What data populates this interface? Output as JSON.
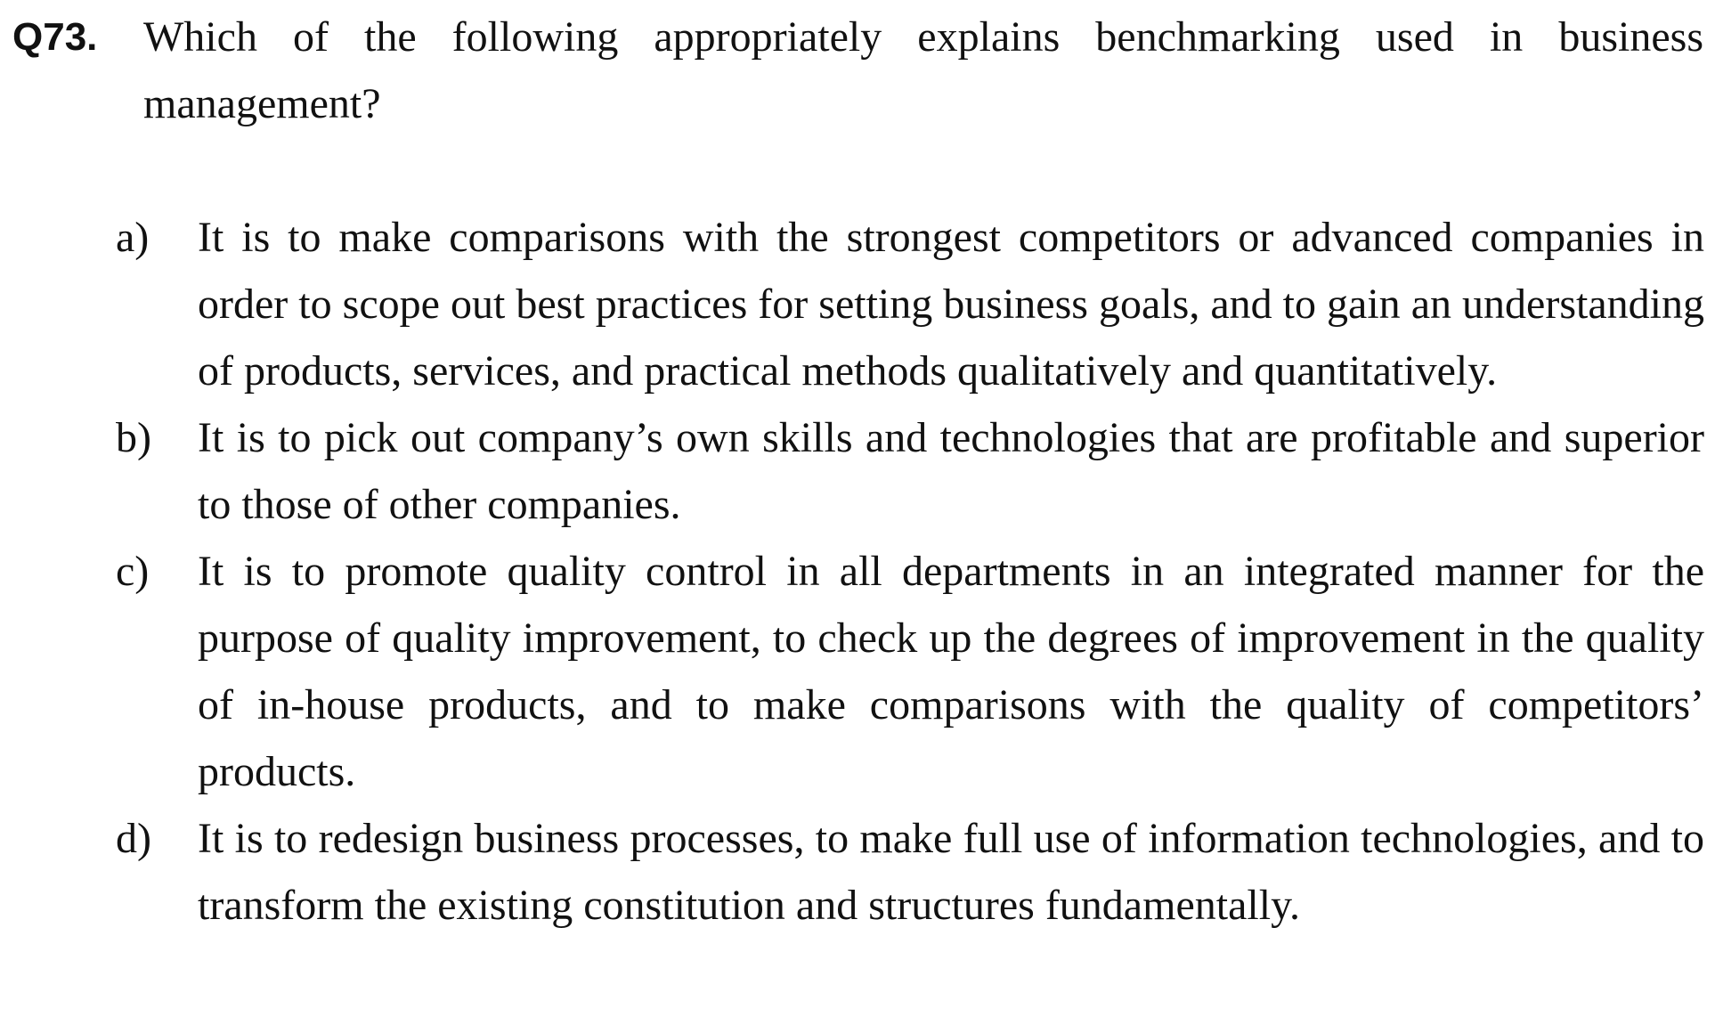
{
  "question": {
    "number": "Q73.",
    "text": "Which of the following appropriately explains benchmarking used in business management?"
  },
  "options": [
    {
      "label": "a)",
      "text": "It is to make comparisons with the strongest competitors or advanced companies in order to scope out best practices for setting business goals, and to gain an understanding of products, services, and practical methods qualitatively and quantitatively."
    },
    {
      "label": "b)",
      "text": "It is to pick out company’s own skills and technologies that are profitable and superior to those of other companies."
    },
    {
      "label": "c)",
      "text": "It is to promote quality control in all departments in an integrated manner for the purpose of quality improvement, to check up the degrees of improvement in the quality of in-house products, and to make comparisons with the quality of competitors’ products."
    },
    {
      "label": "d)",
      "text": "It is to redesign business processes, to make full use of information technologies, and to transform the existing constitution and structures fundamentally."
    }
  ]
}
